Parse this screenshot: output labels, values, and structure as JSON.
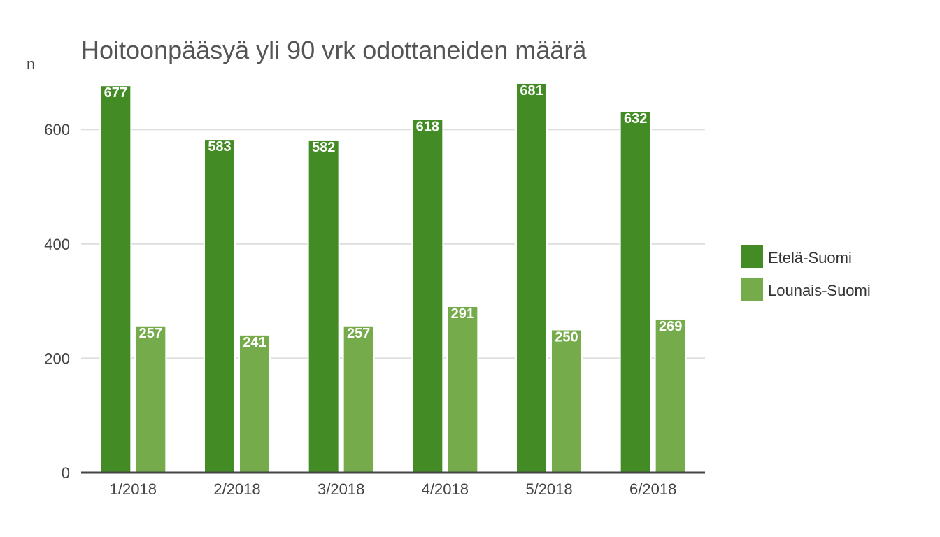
{
  "chart_data": {
    "type": "bar",
    "title": "Hoitoonpääsyä yli 90 vrk odottaneiden määrä",
    "ylabel": "n",
    "xlabel": "",
    "categories": [
      "1/2018",
      "2/2018",
      "3/2018",
      "4/2018",
      "5/2018",
      "6/2018"
    ],
    "series": [
      {
        "name": "Etelä-Suomi",
        "color": "#438b24",
        "values": [
          677,
          583,
          582,
          618,
          681,
          632
        ]
      },
      {
        "name": "Lounais-Suomi",
        "color": "#76ab4b",
        "values": [
          257,
          241,
          257,
          291,
          250,
          269
        ]
      }
    ],
    "ylim": [
      0,
      680
    ],
    "yticks": [
      0,
      200,
      400,
      600
    ],
    "grid": true,
    "legend_position": "right",
    "data_labels": true
  }
}
